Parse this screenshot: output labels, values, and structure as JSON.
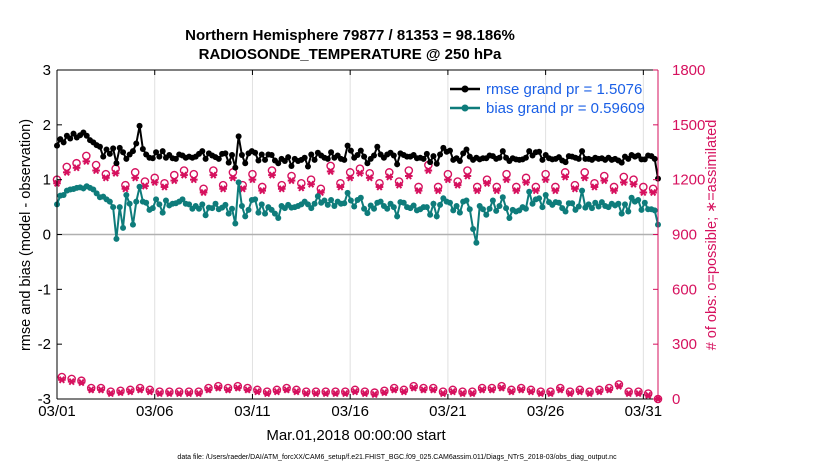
{
  "chart_data": {
    "type": "line",
    "title": "Northern Hemisphere 79877 / 81353 = 98.186%",
    "subtitle": "RADIOSONDE_TEMPERATURE @ 250 hPa",
    "xlabel": "Mar.01,2018 00:00:00 start",
    "ylabel": "rmse and bias (model - observation)",
    "ylabel_right": "# of obs: o=possible; ∗=assimilated",
    "ylim": [
      -3,
      3
    ],
    "ylim_right": [
      0,
      1800
    ],
    "yticks": [
      "3",
      "2",
      "1",
      "0",
      "-1",
      "-2",
      "-3"
    ],
    "yticks_right": [
      "1800",
      "1500",
      "1200",
      "900",
      "600",
      "300",
      "0"
    ],
    "x_ticks": [
      "03/01",
      "03/06",
      "03/11",
      "03/16",
      "03/21",
      "03/26",
      "03/31"
    ],
    "x_tick_days": [
      0,
      5,
      10,
      15,
      20,
      25,
      30
    ],
    "x_range_days": [
      0,
      30.75
    ],
    "footnote": "data file: /Users/raeder/DAI/ATM_forcXX/CAM6_setup/f.e21.FHIST_BGC.f09_025.CAM6assim.011/Diags_NTrS_2018-03/obs_diag_output.nc",
    "series": [
      {
        "name": "rmse",
        "legend": "rmse grand pr = 1.5076",
        "color": "#000000",
        "axis": "left",
        "values": [
          1.62,
          1.74,
          1.68,
          1.8,
          1.75,
          1.84,
          1.77,
          1.81,
          1.86,
          1.8,
          1.72,
          1.68,
          1.63,
          1.6,
          1.42,
          1.55,
          1.47,
          1.57,
          1.3,
          1.58,
          1.5,
          1.38,
          1.46,
          1.52,
          1.66,
          1.98,
          1.56,
          1.46,
          1.4,
          1.39,
          1.5,
          1.42,
          1.52,
          1.4,
          1.45,
          1.39,
          1.38,
          1.46,
          1.44,
          1.4,
          1.42,
          1.4,
          1.42,
          1.47,
          1.52,
          1.38,
          1.48,
          1.44,
          1.41,
          1.38,
          1.47,
          1.48,
          1.31,
          1.45,
          1.22,
          1.79,
          1.45,
          1.3,
          1.48,
          1.52,
          1.49,
          1.35,
          1.46,
          1.36,
          1.46,
          1.45,
          1.35,
          1.3,
          1.38,
          1.34,
          1.41,
          1.25,
          1.38,
          1.34,
          1.36,
          1.4,
          1.24,
          1.46,
          1.36,
          1.49,
          1.44,
          1.4,
          1.38,
          1.5,
          1.4,
          1.44,
          1.38,
          1.36,
          1.62,
          1.53,
          1.4,
          1.45,
          1.53,
          1.42,
          1.3,
          1.38,
          1.44,
          1.6,
          1.46,
          1.4,
          1.46,
          1.49,
          1.44,
          1.28,
          1.48,
          1.45,
          1.42,
          1.42,
          1.45,
          1.39,
          1.4,
          1.38,
          1.47,
          1.32,
          1.43,
          1.29,
          1.46,
          1.58,
          1.51,
          1.53,
          1.36,
          1.39,
          1.34,
          1.48,
          1.55,
          1.42,
          1.36,
          1.4,
          1.37,
          1.39,
          1.39,
          1.44,
          1.43,
          1.38,
          1.4,
          1.52,
          1.4,
          1.34,
          1.39,
          1.37,
          1.36,
          1.37,
          1.4,
          1.52,
          1.44,
          1.5,
          1.51,
          1.36,
          1.45,
          1.39,
          1.37,
          1.38,
          1.41,
          1.35,
          1.32,
          1.43,
          1.42,
          1.4,
          1.38,
          1.52,
          1.38,
          1.38,
          1.36,
          1.4,
          1.38,
          1.39,
          1.36,
          1.4,
          1.36,
          1.38,
          1.35,
          1.31,
          1.42,
          1.38,
          1.45,
          1.42,
          1.44,
          1.37,
          1.37,
          1.44,
          1.43,
          1.38,
          1.02
        ]
      },
      {
        "name": "bias",
        "legend": "bias grand pr = 0.59609",
        "color": "#0e7c7b",
        "axis": "left",
        "values": [
          0.55,
          0.71,
          0.72,
          0.8,
          0.82,
          0.83,
          0.85,
          0.86,
          0.84,
          0.88,
          0.85,
          0.82,
          0.75,
          0.68,
          0.69,
          0.64,
          0.6,
          0.5,
          -0.08,
          0.5,
          0.12,
          0.72,
          0.56,
          0.18,
          0.6,
          0.87,
          0.6,
          0.58,
          0.45,
          0.48,
          0.64,
          0.55,
          0.4,
          0.62,
          0.53,
          0.56,
          0.57,
          0.6,
          0.64,
          0.56,
          0.55,
          0.47,
          0.52,
          0.47,
          0.55,
          0.35,
          0.49,
          0.48,
          0.56,
          0.46,
          0.49,
          0.54,
          0.38,
          0.47,
          0.2,
          0.95,
          0.52,
          0.33,
          0.45,
          0.63,
          0.64,
          0.4,
          0.55,
          0.38,
          0.5,
          0.45,
          0.38,
          0.3,
          0.52,
          0.48,
          0.54,
          0.49,
          0.5,
          0.52,
          0.55,
          0.6,
          0.55,
          0.48,
          0.56,
          0.7,
          0.58,
          0.62,
          0.54,
          0.63,
          0.52,
          0.6,
          0.56,
          0.57,
          0.76,
          0.62,
          0.51,
          0.63,
          0.67,
          0.47,
          0.39,
          0.53,
          0.47,
          0.58,
          0.6,
          0.52,
          0.47,
          0.56,
          0.5,
          0.33,
          0.59,
          0.58,
          0.5,
          0.48,
          0.53,
          0.44,
          0.46,
          0.5,
          0.5,
          0.36,
          0.56,
          0.33,
          0.54,
          0.66,
          0.6,
          0.58,
          0.44,
          0.52,
          0.4,
          0.6,
          0.62,
          0.46,
          0.1,
          -0.15,
          0.52,
          0.46,
          0.36,
          0.47,
          0.62,
          0.43,
          0.52,
          0.68,
          0.48,
          0.3,
          0.45,
          0.42,
          0.44,
          0.5,
          0.47,
          0.78,
          0.56,
          0.64,
          0.66,
          0.5,
          0.72,
          0.59,
          0.54,
          0.59,
          0.58,
          0.48,
          0.42,
          0.57,
          0.57,
          0.45,
          0.51,
          0.8,
          0.49,
          0.55,
          0.48,
          0.58,
          0.51,
          0.59,
          0.52,
          0.5,
          0.56,
          0.53,
          0.56,
          0.38,
          0.55,
          0.42,
          0.67,
          0.6,
          0.63,
          0.45,
          0.58,
          0.46,
          0.46,
          0.44,
          0.18
        ]
      },
      {
        "name": "obs_possible_00Z",
        "color": "#d6115e",
        "axis": "right",
        "marker": "o",
        "values": [
          1200,
          1290,
          1280,
          1260,
          1240,
          1210,
          1225,
          1230,
          1250,
          1240,
          1230,
          1250,
          1220,
          1200,
          1275,
          1240,
          1235,
          1240,
          1250,
          1280,
          1230,
          1250,
          1200,
          1230,
          1210,
          1230,
          1240,
          1240,
          1220,
          1215,
          1160
        ]
      },
      {
        "name": "obs_assimilated_00Z",
        "color": "#d6115e",
        "axis": "right",
        "marker": "*",
        "values": [
          1180,
          1265,
          1250,
          1235,
          1210,
          1185,
          1195,
          1200,
          1225,
          1210,
          1200,
          1225,
          1195,
          1175,
          1245,
          1210,
          1210,
          1215,
          1220,
          1250,
          1200,
          1220,
          1180,
          1200,
          1185,
          1200,
          1215,
          1210,
          1195,
          1185,
          1130
        ]
      },
      {
        "name": "obs_possible_12Z",
        "color": "#d6115e",
        "axis": "right",
        "marker": "o",
        "values": [
          1270,
          1330,
          1230,
          1170,
          1190,
          1180,
          1250,
          1150,
          1170,
          1170,
          1160,
          1170,
          1180,
          1150,
          1180,
          1260,
          1180,
          1190,
          1160,
          1160,
          1190,
          1160,
          1160,
          1160,
          1160,
          1160,
          1170,
          1180,
          1160,
          1200,
          1150
        ]
      },
      {
        "name": "obs_assimilated_12Z",
        "color": "#d6115e",
        "axis": "right",
        "marker": "*",
        "values": [
          1240,
          1300,
          1210,
          1150,
          1165,
          1160,
          1225,
          1130,
          1150,
          1150,
          1140,
          1150,
          1155,
          1130,
          1160,
          1235,
          1160,
          1170,
          1140,
          1140,
          1170,
          1140,
          1140,
          1140,
          1140,
          1140,
          1150,
          1160,
          1140,
          1175,
          1130
        ]
      },
      {
        "name": "obs_possible_06Z_18Z",
        "color": "#d6115e",
        "axis": "right",
        "marker": "o",
        "values": [
          120,
          110,
          100,
          60,
          60,
          40,
          45,
          50,
          60,
          50,
          40,
          40,
          40,
          40,
          40,
          60,
          70,
          60,
          70,
          60,
          50,
          40,
          50,
          60,
          50,
          40,
          40,
          40,
          40,
          40,
          50,
          40,
          35,
          45,
          60,
          50,
          70,
          60,
          60,
          40,
          50,
          40,
          40,
          60,
          60,
          70,
          50,
          60,
          50,
          40,
          40,
          60,
          40,
          50,
          40,
          50,
          60,
          80,
          40,
          40,
          30,
          0
        ]
      },
      {
        "name": "obs_assimilated_06Z_18Z",
        "color": "#d6115e",
        "axis": "right",
        "marker": "*",
        "values": [
          105,
          95,
          90,
          50,
          50,
          30,
          35,
          40,
          50,
          40,
          30,
          30,
          30,
          30,
          30,
          50,
          60,
          50,
          60,
          50,
          40,
          30,
          40,
          50,
          40,
          30,
          30,
          30,
          30,
          30,
          40,
          30,
          25,
          35,
          50,
          40,
          60,
          50,
          50,
          30,
          40,
          30,
          30,
          50,
          50,
          60,
          40,
          50,
          40,
          30,
          30,
          50,
          30,
          40,
          30,
          40,
          50,
          70,
          30,
          30,
          20,
          0
        ]
      }
    ],
    "colors": {
      "axis": "#000000",
      "right_axis": "#d6115e",
      "zero_line": "#b0b0b0",
      "grid": "#e0e0e0"
    }
  }
}
